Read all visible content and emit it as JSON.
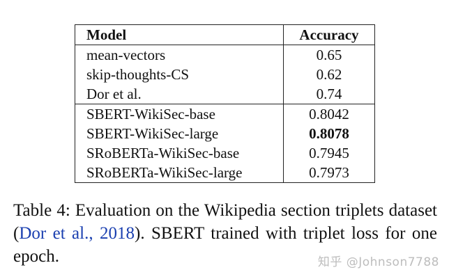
{
  "table": {
    "headers": [
      "Model",
      "Accuracy"
    ],
    "group1": [
      {
        "model": "mean-vectors",
        "accuracy": "0.65"
      },
      {
        "model": "skip-thoughts-CS",
        "accuracy": "0.62"
      },
      {
        "model": "Dor et al.",
        "accuracy": "0.74"
      }
    ],
    "group2": [
      {
        "model": "SBERT-WikiSec-base",
        "accuracy": "0.8042"
      },
      {
        "model": "SBERT-WikiSec-large",
        "accuracy": "0.8078",
        "best": true
      },
      {
        "model": "SRoBERTa-WikiSec-base",
        "accuracy": "0.7945"
      },
      {
        "model": "SRoBERTa-WikiSec-large",
        "accuracy": "0.7973"
      }
    ]
  },
  "caption": {
    "prefix": "Table 4:  Evaluation on the Wikipedia section triplets dataset (",
    "citation": "Dor et al., 2018",
    "suffix": ").  SBERT trained with triplet loss for one epoch.",
    "citation_color": "#1a3fb0"
  },
  "watermark": "知乎 @Johnson7788"
}
